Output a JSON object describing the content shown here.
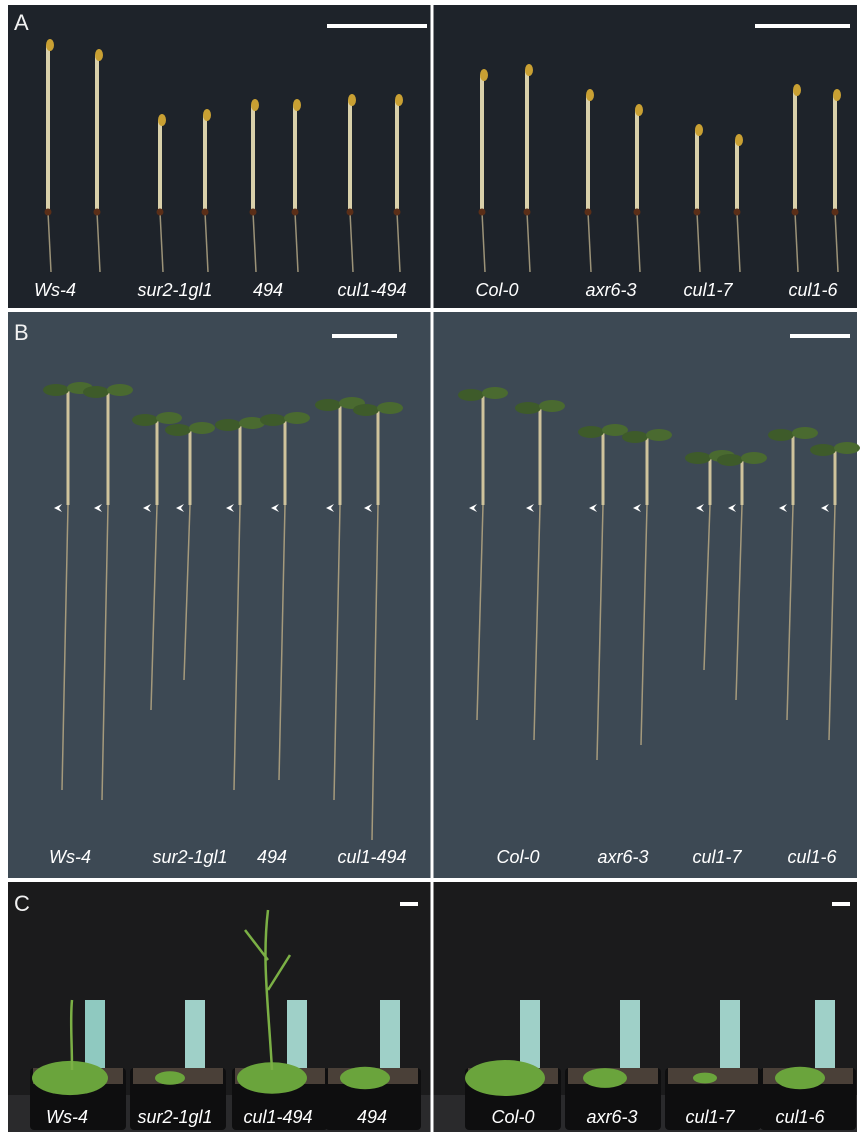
{
  "panels": [
    {
      "label": "A",
      "groups": [
        [
          "Ws-4",
          "sur2-1gl1",
          "494",
          "cul1-494"
        ],
        [
          "Col-0",
          "axr6-3",
          "cul1-7",
          "cul1-6"
        ]
      ]
    },
    {
      "label": "B",
      "groups": [
        [
          "Ws-4",
          "sur2-1gl1",
          "494",
          "cul1-494"
        ],
        [
          "Col-0",
          "axr6-3",
          "cul1-7",
          "cul1-6"
        ]
      ]
    },
    {
      "label": "C",
      "groups": [
        [
          "Ws-4",
          "sur2-1gl1",
          "cul1-494",
          "494"
        ],
        [
          "Col-0",
          "axr6-3",
          "cul1-7",
          "cul1-6"
        ]
      ]
    }
  ]
}
